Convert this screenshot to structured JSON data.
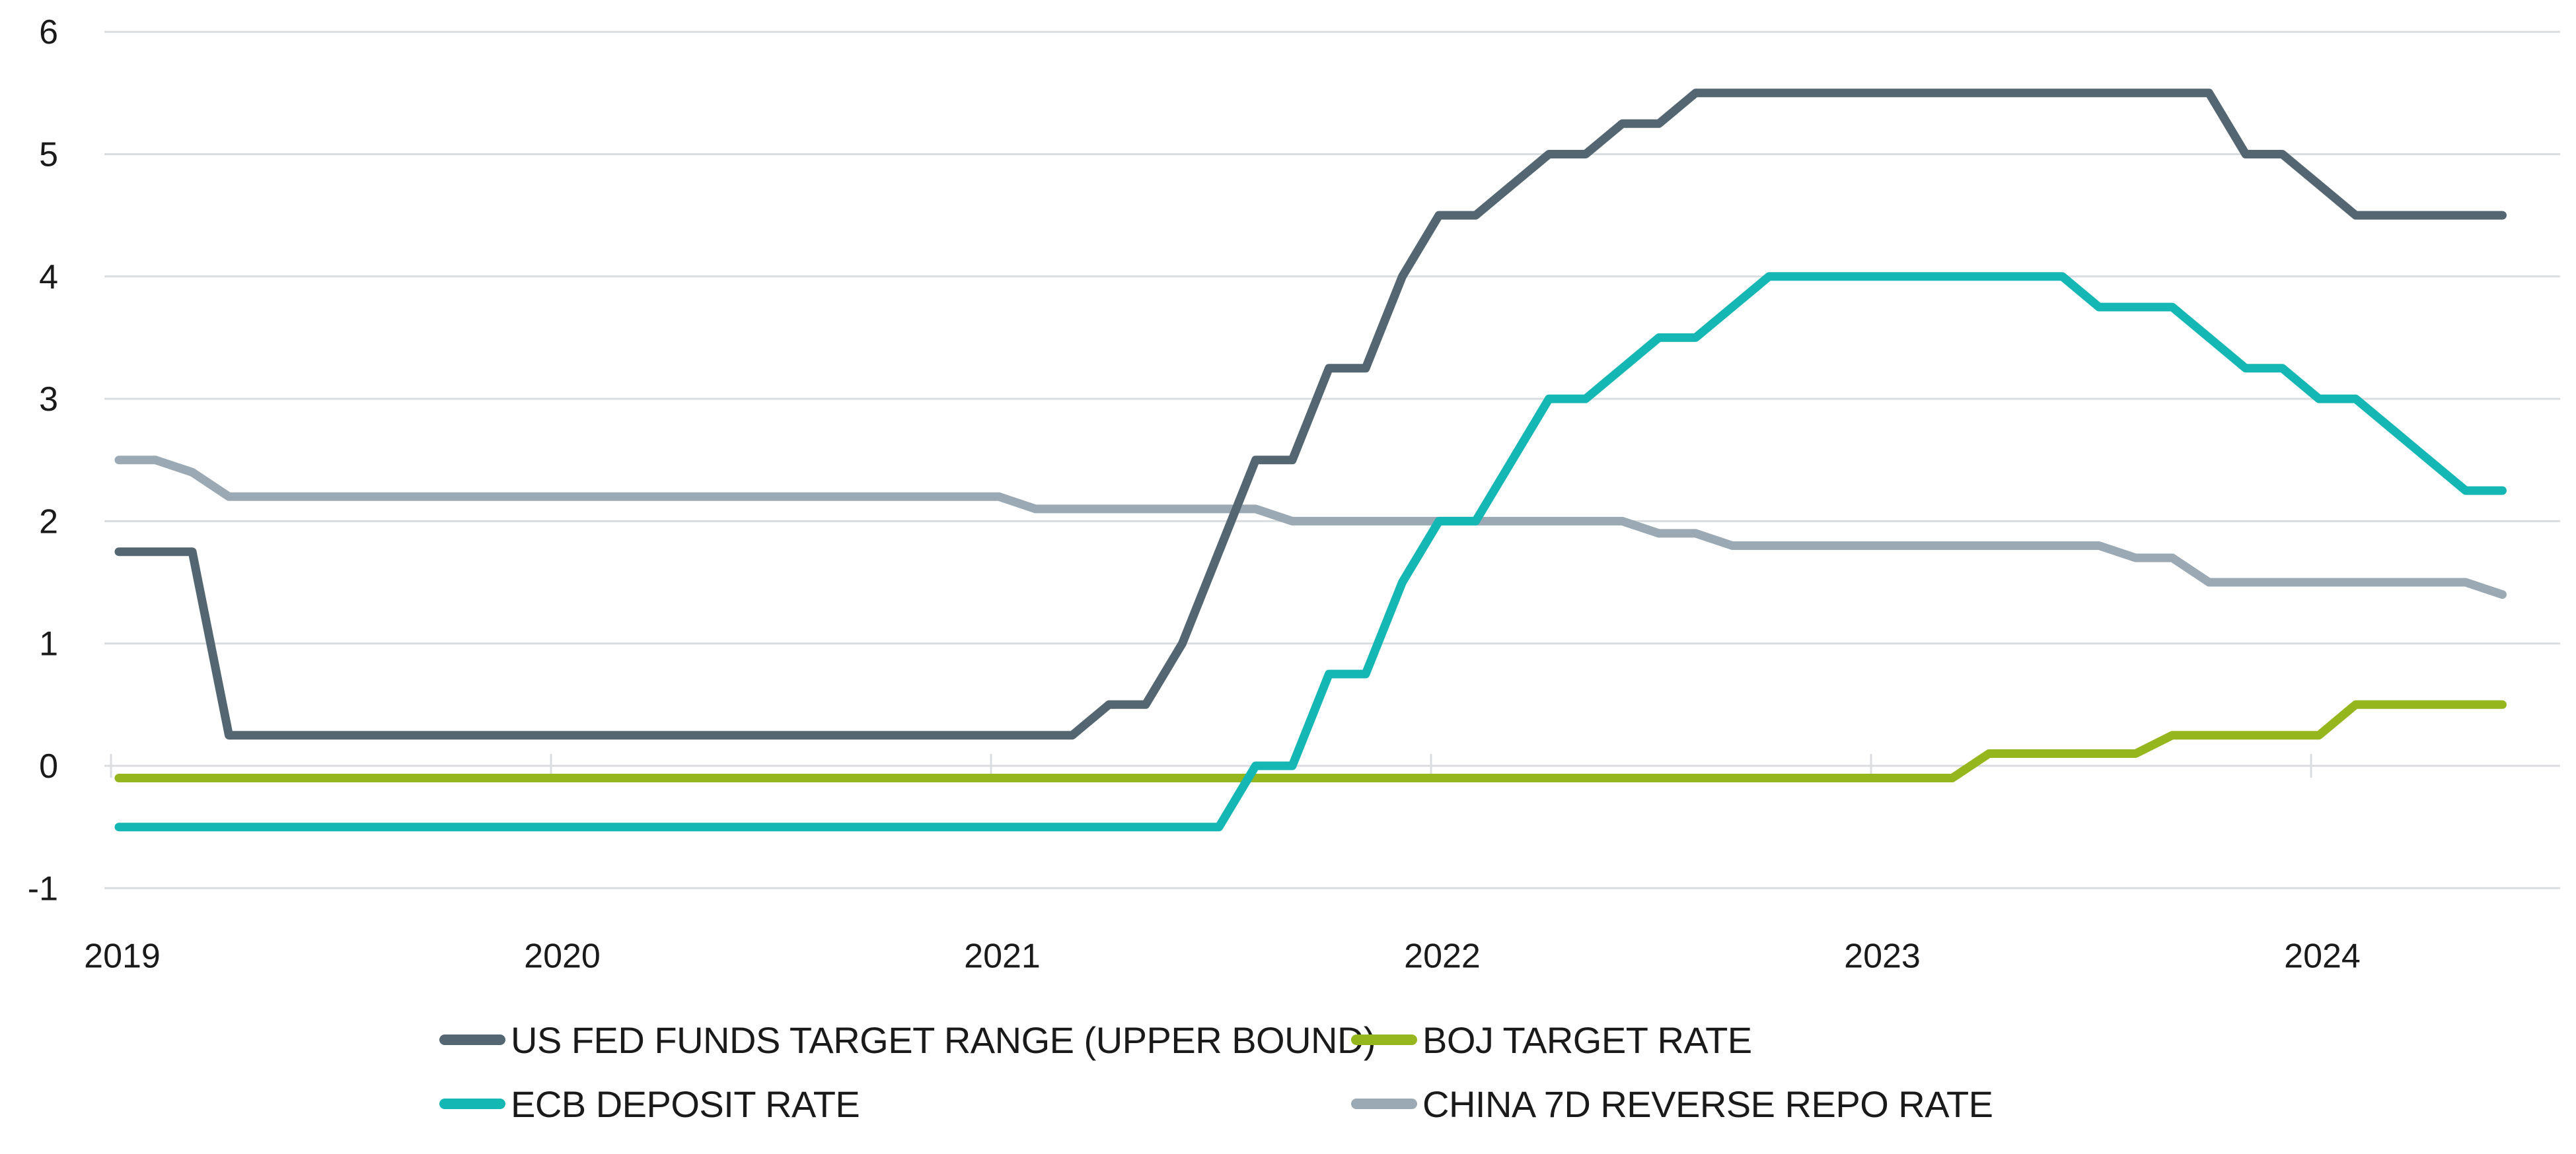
{
  "chart_data": {
    "type": "line",
    "ylim": [
      -1,
      6
    ],
    "xlim": [
      "2019-01-01",
      "2024-06-01"
    ],
    "y_ticks": [
      "-1",
      "0",
      "1",
      "2",
      "3",
      "4",
      "5",
      "6"
    ],
    "x_ticks": [
      "2019",
      "2020",
      "2021",
      "2022",
      "2023",
      "2024"
    ],
    "grid": "horizontal",
    "legend_placement": "bottom",
    "series": [
      {
        "name": "US FED FUNDS TARGET RANGE (UPPER BOUND)",
        "color": "#546671",
        "x": [
          "2019-01",
          "2019-02",
          "2019-03",
          "2019-04",
          "2019-05",
          "2019-06",
          "2019-07",
          "2019-08",
          "2019-09",
          "2019-10",
          "2019-11",
          "2019-12",
          "2020-01",
          "2020-02",
          "2020-03",
          "2020-04",
          "2020-05",
          "2020-06",
          "2020-07",
          "2020-08",
          "2020-09",
          "2020-10",
          "2020-11",
          "2020-12",
          "2021-01",
          "2021-02",
          "2021-03",
          "2021-04",
          "2021-05",
          "2021-06",
          "2021-07",
          "2021-08",
          "2021-09",
          "2021-10",
          "2021-11",
          "2021-12",
          "2022-01",
          "2022-02",
          "2022-03",
          "2022-04",
          "2022-05",
          "2022-06",
          "2022-07",
          "2022-08",
          "2022-09",
          "2022-10",
          "2022-11",
          "2022-12",
          "2023-01",
          "2023-02",
          "2023-03",
          "2023-04",
          "2023-05",
          "2023-06",
          "2023-07",
          "2023-08",
          "2023-09",
          "2023-10",
          "2023-11",
          "2023-12",
          "2024-01",
          "2024-02",
          "2024-03",
          "2024-04",
          "2024-05",
          "2024-06"
        ],
        "y": [
          1.75,
          1.75,
          1.75,
          0.25,
          0.25,
          0.25,
          0.25,
          0.25,
          0.25,
          0.25,
          0.25,
          0.25,
          0.25,
          0.25,
          0.25,
          0.25,
          0.25,
          0.25,
          0.25,
          0.25,
          0.25,
          0.25,
          0.25,
          0.25,
          0.25,
          0.25,
          0.25,
          0.5,
          0.5,
          1.0,
          1.75,
          2.5,
          2.5,
          3.25,
          3.25,
          4.0,
          4.5,
          4.5,
          4.75,
          5.0,
          5.0,
          5.25,
          5.25,
          5.5,
          5.5,
          5.5,
          5.5,
          5.5,
          5.5,
          5.5,
          5.5,
          5.5,
          5.5,
          5.5,
          5.5,
          5.5,
          5.5,
          5.5,
          5.0,
          5.0,
          4.75,
          4.5,
          4.5,
          4.5,
          4.5,
          4.5
        ]
      },
      {
        "name": "BOJ TARGET RATE",
        "color": "#96b61e",
        "x": [
          "2019-01",
          "2020-01",
          "2021-01",
          "2022-01",
          "2023-01",
          "2023-03",
          "2023-04",
          "2023-05",
          "2023-06",
          "2023-07",
          "2023-08",
          "2023-09",
          "2023-10",
          "2023-11",
          "2023-12",
          "2024-01",
          "2024-02",
          "2024-03",
          "2024-04",
          "2024-05",
          "2024-06"
        ],
        "y": [
          -0.1,
          -0.1,
          -0.1,
          -0.1,
          -0.1,
          -0.1,
          0.1,
          0.1,
          0.1,
          0.1,
          0.1,
          0.25,
          0.25,
          0.25,
          0.25,
          0.25,
          0.5,
          0.5,
          0.5,
          0.5,
          0.5
        ]
      },
      {
        "name": "ECB DEPOSIT RATE",
        "color": "#14b7b3",
        "x": [
          "2019-01",
          "2020-01",
          "2021-01",
          "2021-07",
          "2021-08",
          "2021-09",
          "2021-10",
          "2021-11",
          "2021-12",
          "2022-01",
          "2022-02",
          "2022-03",
          "2022-04",
          "2022-05",
          "2022-06",
          "2022-07",
          "2022-08",
          "2022-09",
          "2022-10",
          "2022-11",
          "2022-12",
          "2023-01",
          "2023-02",
          "2023-03",
          "2023-04",
          "2023-05",
          "2023-06",
          "2023-07",
          "2023-08",
          "2023-09",
          "2023-10",
          "2023-11",
          "2023-12",
          "2024-01",
          "2024-02",
          "2024-03",
          "2024-04",
          "2024-05",
          "2024-06"
        ],
        "y": [
          -0.5,
          -0.5,
          -0.5,
          -0.5,
          0.0,
          0.0,
          0.75,
          0.75,
          1.5,
          2.0,
          2.0,
          2.5,
          3.0,
          3.0,
          3.25,
          3.5,
          3.5,
          3.75,
          4.0,
          4.0,
          4.0,
          4.0,
          4.0,
          4.0,
          4.0,
          4.0,
          4.0,
          3.75,
          3.75,
          3.75,
          3.5,
          3.25,
          3.25,
          3.0,
          3.0,
          2.75,
          2.5,
          2.25,
          2.25
        ]
      },
      {
        "name": "CHINA 7D REVERSE REPO RATE",
        "color": "#9aa9b3",
        "x": [
          "2019-01",
          "2019-02",
          "2019-03",
          "2019-04",
          "2020-01",
          "2021-01",
          "2021-02",
          "2021-03",
          "2021-04",
          "2021-05",
          "2021-06",
          "2021-07",
          "2021-08",
          "2021-09",
          "2022-01",
          "2022-06",
          "2022-07",
          "2022-08",
          "2022-09",
          "2023-01",
          "2023-06",
          "2023-07",
          "2023-08",
          "2023-09",
          "2023-10",
          "2024-01",
          "2024-05",
          "2024-06"
        ],
        "y": [
          2.5,
          2.5,
          2.4,
          2.2,
          2.2,
          2.2,
          2.1,
          2.1,
          2.1,
          2.1,
          2.1,
          2.1,
          2.1,
          2.0,
          2.0,
          2.0,
          1.9,
          1.9,
          1.8,
          1.8,
          1.8,
          1.8,
          1.7,
          1.7,
          1.5,
          1.5,
          1.5,
          1.4
        ]
      }
    ]
  },
  "legend": {
    "items": [
      {
        "label": "US FED FUNDS TARGET RANGE (UPPER BOUND)",
        "color": "#546671"
      },
      {
        "label": "BOJ TARGET RATE",
        "color": "#96b61e"
      },
      {
        "label": "ECB DEPOSIT RATE",
        "color": "#14b7b3"
      },
      {
        "label": "CHINA 7D REVERSE REPO RATE",
        "color": "#9aa9b3"
      }
    ]
  }
}
